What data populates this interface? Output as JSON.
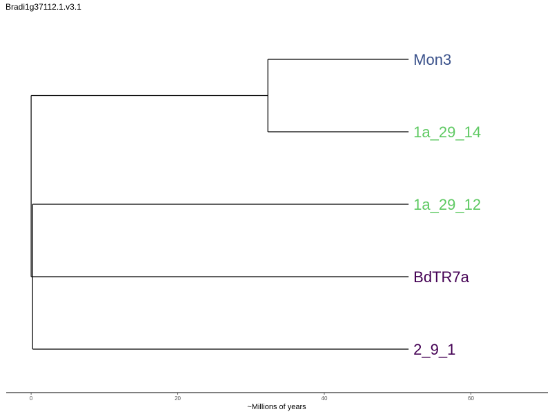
{
  "title": "Bradi1g37112.1.v3.1",
  "chart_data": {
    "type": "dendrogram",
    "xlabel": "~Millions of years",
    "x_ticks": [
      0,
      20,
      40,
      60
    ],
    "xlim": [
      -3.4,
      70.5
    ],
    "leaves": [
      {
        "label": "Mon3",
        "color": "#3b528b",
        "branch_end": 51.5
      },
      {
        "label": "1a_29_14",
        "color": "#5ec962",
        "branch_end": 51.5
      },
      {
        "label": "1a_29_12",
        "color": "#5ec962",
        "branch_end": 51.5
      },
      {
        "label": "BdTR7a",
        "color": "#440154",
        "branch_end": 51.5
      },
      {
        "label": "2_9_1",
        "color": "#440154",
        "branch_end": 51.5
      }
    ],
    "internal_nodes": [
      {
        "name": "root",
        "x": 0,
        "children": [
          "clade_mon3",
          "polytomy"
        ]
      },
      {
        "name": "clade_mon3",
        "x": 32.3,
        "children": [
          "Mon3",
          "1a_29_14"
        ]
      },
      {
        "name": "polytomy",
        "x": 0.2,
        "children": [
          "1a_29_12",
          "BdTR7a",
          "2_9_1"
        ]
      }
    ]
  }
}
